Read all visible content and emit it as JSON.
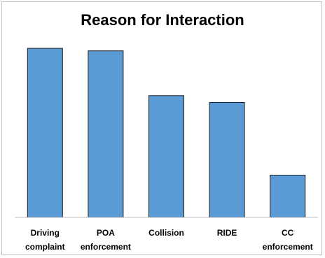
{
  "chart_data": {
    "type": "bar",
    "title": "Reason for Interaction",
    "categories": [
      [
        "Driving",
        "complaint"
      ],
      [
        "POA",
        "enforcement"
      ],
      [
        "Collision"
      ],
      [
        "RIDE"
      ],
      [
        "CC",
        "enforcement"
      ]
    ],
    "values": [
      100,
      98.5,
      72,
      68,
      25
    ],
    "ylim": [
      0,
      105
    ],
    "xlabel": "",
    "ylabel": "",
    "grid": false,
    "legend": "none",
    "bar_color": "#5b9bd5",
    "bar_edge_color": "#1f1f1f",
    "axis_color": "#bfbfbf"
  }
}
